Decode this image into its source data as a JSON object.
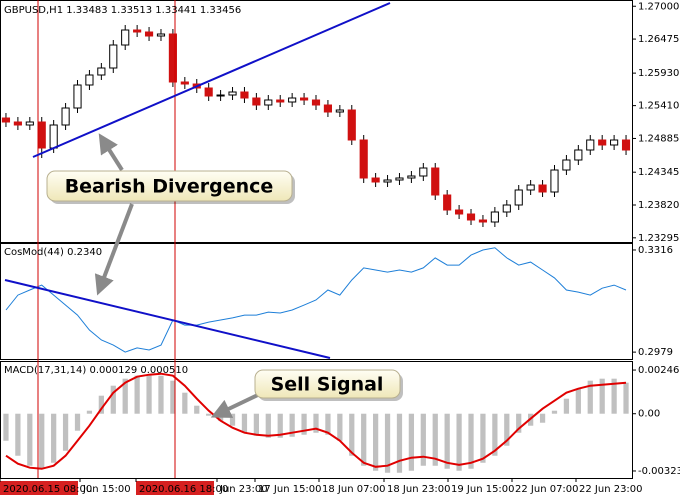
{
  "chart_data": [
    {
      "type": "candlestick",
      "title": "GBPUSD,H1  1.33483 1.33513 1.33441 1.33456",
      "up_color": "#ffffff",
      "down_color": "#d01010",
      "open": [
        1.25212,
        1.25148,
        1.251,
        1.25148,
        1.24732,
        1.251,
        1.25372,
        1.2574,
        1.259,
        1.26012,
        1.2638,
        1.2662,
        1.26588,
        1.26524,
        1.26556,
        1.25788,
        1.25756,
        1.25692,
        1.25564,
        1.2558,
        1.25628,
        1.25532,
        1.2542,
        1.255,
        1.25468,
        1.25532,
        1.255,
        1.2542,
        1.25308,
        1.2534,
        1.2486,
        1.24252,
        1.24188,
        1.2422,
        1.24252,
        1.24284,
        1.24412,
        1.2398,
        1.2374,
        1.23676,
        1.2358,
        1.23548,
        1.23708,
        1.2382,
        1.2406,
        1.2414,
        1.24028,
        1.2438,
        1.2454,
        1.247,
        1.2486,
        1.2478,
        1.2486
      ],
      "high": [
        1.25292,
        1.25228,
        1.25228,
        1.25228,
        1.2518,
        1.25452,
        1.2582,
        1.2598,
        1.26092,
        1.2646,
        1.267,
        1.267,
        1.26668,
        1.26636,
        1.26636,
        1.25868,
        1.25836,
        1.25772,
        1.2566,
        1.25708,
        1.25708,
        1.25612,
        1.2558,
        1.2558,
        1.25612,
        1.25612,
        1.2558,
        1.255,
        1.2542,
        1.2542,
        1.2494,
        1.24332,
        1.243,
        1.24332,
        1.24364,
        1.24492,
        1.24492,
        1.2406,
        1.2382,
        1.23756,
        1.2366,
        1.23788,
        1.239,
        1.2414,
        1.2422,
        1.2422,
        1.2446,
        1.2462,
        1.2478,
        1.2494,
        1.2494,
        1.2494,
        1.2494
      ],
      "low": [
        1.25068,
        1.2502,
        1.2502,
        1.24572,
        1.24652,
        1.2502,
        1.25292,
        1.2566,
        1.2582,
        1.25932,
        1.263,
        1.26508,
        1.26444,
        1.26444,
        1.25708,
        1.25676,
        1.25612,
        1.25484,
        1.25484,
        1.255,
        1.25452,
        1.2534,
        1.2534,
        1.25388,
        1.25388,
        1.2542,
        1.2534,
        1.25228,
        1.25228,
        1.2478,
        1.24172,
        1.24108,
        1.24108,
        1.2414,
        1.24172,
        1.24204,
        1.239,
        1.2366,
        1.23596,
        1.235,
        1.23468,
        1.23468,
        1.23628,
        1.2374,
        1.2398,
        1.23948,
        1.23948,
        1.243,
        1.2446,
        1.2462,
        1.247,
        1.247,
        1.2462
      ],
      "close": [
        1.25148,
        1.251,
        1.25148,
        1.24732,
        1.251,
        1.25372,
        1.2574,
        1.259,
        1.26012,
        1.2638,
        1.2662,
        1.26588,
        1.26524,
        1.26556,
        1.25788,
        1.25756,
        1.25692,
        1.25564,
        1.2558,
        1.25628,
        1.25532,
        1.2542,
        1.255,
        1.25468,
        1.25532,
        1.255,
        1.2542,
        1.25308,
        1.2534,
        1.2486,
        1.24252,
        1.24188,
        1.2422,
        1.24252,
        1.24284,
        1.24412,
        1.2398,
        1.2374,
        1.23676,
        1.2358,
        1.23548,
        1.23708,
        1.2382,
        1.2406,
        1.2414,
        1.24028,
        1.2438,
        1.2454,
        1.247,
        1.2486,
        1.2478,
        1.2486,
        1.247
      ],
      "ylim": [
        1.23228,
        1.271
      ],
      "yticks": [
        {
          "value": 1.27,
          "label": "1.27000"
        },
        1.26475,
        {
          "value": 1.2593,
          "label": "1.25930"
        },
        {
          "value": 1.2541,
          "label": "1.25410"
        },
        1.24885,
        1.24345,
        {
          "value": 1.2382,
          "label": "1.23820"
        },
        1.23295
      ]
    },
    {
      "type": "line",
      "title": "CosMod(44) 0.2340",
      "color": "#1e7fd8",
      "values": [
        0.3118,
        0.3167,
        0.3184,
        0.32,
        0.3167,
        0.3134,
        0.3101,
        0.3052,
        0.3019,
        0.3002,
        0.2979,
        0.2993,
        0.2986,
        0.3002,
        0.3085,
        0.3068,
        0.3068,
        0.3078,
        0.3085,
        0.3092,
        0.3101,
        0.3101,
        0.3111,
        0.3108,
        0.3118,
        0.3134,
        0.3151,
        0.3184,
        0.3167,
        0.3217,
        0.3257,
        0.325,
        0.3243,
        0.325,
        0.3243,
        0.3257,
        0.329,
        0.3266,
        0.3266,
        0.3299,
        0.3316,
        0.3323,
        0.329,
        0.3266,
        0.3276,
        0.325,
        0.3224,
        0.3184,
        0.3177,
        0.3167,
        0.319,
        0.32,
        0.3184
      ],
      "ylim": [
        0.2953,
        0.3339
      ],
      "yticks": [
        0.3316,
        0.2979
      ]
    },
    {
      "type": "macd",
      "title": "MACD(17,31,14) 0.000129 0.000510",
      "series": [
        {
          "type": "bar",
          "color": "#c0c0c0",
          "values": [
            -0.001526,
            -0.002373,
            -0.002938,
            -0.003108,
            -0.002769,
            -0.002091,
            -0.000961,
            0.00017,
            0.001017,
            0.001582,
            0.001978,
            0.002147,
            0.002147,
            0.002147,
            0.001865,
            0.001187,
            0.000452,
            -0.000113,
            -0.000396,
            -0.000678,
            -0.001074,
            -0.001243,
            -0.001356,
            -0.001356,
            -0.0013,
            -0.001187,
            -0.001074,
            -0.001187,
            -0.001526,
            -0.002373,
            -0.002938,
            -0.003221,
            -0.003334,
            -0.003334,
            -0.003221,
            -0.002938,
            -0.002938,
            -0.003108,
            -0.003221,
            -0.003108,
            -0.002769,
            -0.002373,
            -0.001808,
            -0.001074,
            -0.000678,
            -0.000509,
            0.00017,
            0.000848,
            0.001413,
            0.001865,
            0.001978,
            0.001978,
            0.001752
          ]
        },
        {
          "type": "line",
          "color": "#e00000",
          "values": [
            -0.002373,
            -0.002825,
            -0.003051,
            -0.003108,
            -0.002938,
            -0.002373,
            -0.001526,
            -0.000678,
            0.000283,
            0.001187,
            0.001752,
            0.002091,
            0.002204,
            0.00226,
            0.002147,
            0.001582,
            0.000848,
            0.00017,
            -0.000396,
            -0.000791,
            -0.001074,
            -0.001187,
            -0.001243,
            -0.001187,
            -0.001074,
            -0.000961,
            -0.000848,
            -0.001074,
            -0.001526,
            -0.002204,
            -0.002769,
            -0.002995,
            -0.002938,
            -0.002656,
            -0.002486,
            -0.00243,
            -0.002543,
            -0.002769,
            -0.002882,
            -0.002769,
            -0.002543,
            -0.002091,
            -0.001526,
            -0.000848,
            -0.000283,
            0.000283,
            0.000735,
            0.001187,
            0.001413,
            0.001582,
            0.001639,
            0.001695,
            0.001752
          ]
        }
      ],
      "ylim": [
        -0.00363,
        0.00292
      ],
      "yticks": [
        0.002465,
        {
          "value": 0,
          "label": "0.00"
        },
        -0.003233
      ]
    }
  ],
  "time_axis": [
    "2020.06.15 08:00",
    "Jun 15:00",
    "2020.06.16 18:00",
    "Jun 23:00",
    "17 Jun 15:00",
    "18 Jun 07:00",
    "18 Jun 23:00",
    "19 Jun 15:00",
    "22 Jun 07:00",
    "22 Jun 23:00"
  ],
  "annotations": [
    "Bearish Divergence",
    "Sell Signal"
  ]
}
